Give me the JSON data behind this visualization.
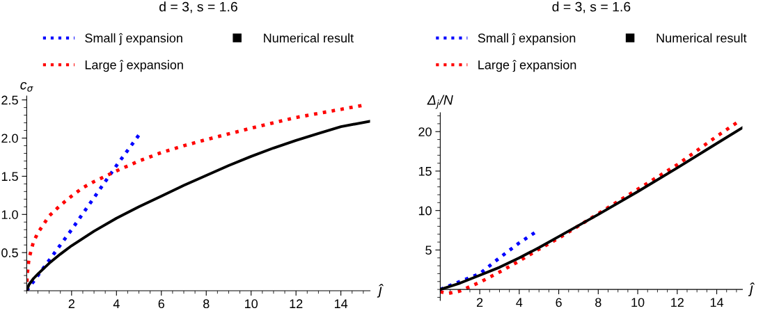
{
  "chart_data": [
    {
      "type": "line",
      "title": "d = 3, s = 1.6",
      "xlabel": "ĵ",
      "ylabel": "c$_{σ}$",
      "legend": "top",
      "xlim": [
        0,
        15.3
      ],
      "ylim": [
        0,
        2.55
      ],
      "xticks": [
        2,
        4,
        6,
        8,
        10,
        12,
        14
      ],
      "yticks": [
        0.5,
        {
          "value": 1,
          "label": "1.0"
        },
        1.5,
        {
          "value": 2,
          "label": "2.0"
        },
        2.5
      ],
      "series": [
        {
          "name": "Small ĵ expansion",
          "color": "#0000ff",
          "line_style": "dotted",
          "x": [
            0,
            1,
            2,
            3,
            4,
            5
          ],
          "values": [
            0,
            0.4,
            0.8,
            1.22,
            1.64,
            2.04
          ]
        },
        {
          "name": "Large ĵ expansion",
          "color": "#ff0000",
          "line_style": "dotted",
          "x": [
            0,
            0.02,
            0.1,
            0.3,
            0.5,
            1,
            1.5,
            2,
            2.5,
            3,
            4,
            5,
            6,
            7,
            8,
            10,
            12,
            15
          ],
          "values": [
            0,
            0.2,
            0.42,
            0.64,
            0.76,
            0.98,
            1.12,
            1.24,
            1.35,
            1.43,
            1.57,
            1.7,
            1.81,
            1.9,
            1.98,
            2.13,
            2.27,
            2.43
          ]
        },
        {
          "name": "Numerical result",
          "color": "#000000",
          "line_style": "solid",
          "x": [
            0,
            0.1,
            0.3,
            0.5,
            1,
            1.5,
            2,
            3,
            4,
            5,
            6,
            7,
            8,
            9,
            10,
            11,
            12,
            13,
            14,
            15.3
          ],
          "values": [
            0,
            0.08,
            0.16,
            0.22,
            0.36,
            0.48,
            0.59,
            0.78,
            0.95,
            1.1,
            1.24,
            1.38,
            1.51,
            1.64,
            1.76,
            1.87,
            1.97,
            2.06,
            2.15,
            2.22
          ]
        }
      ]
    },
    {
      "type": "line",
      "title": "d = 3, s = 1.6",
      "xlabel": "ĵ",
      "ylabel": "Δ$_{j}$/N",
      "legend": "top",
      "xlim": [
        0,
        15.3
      ],
      "ylim": [
        -1.4,
        22.4
      ],
      "xticks": [
        2,
        4,
        6,
        8,
        10,
        12,
        14
      ],
      "yticks": [
        5,
        10,
        15,
        20
      ],
      "series": [
        {
          "name": "Small ĵ expansion",
          "color": "#0000ff",
          "line_style": "dotted",
          "x": [
            0,
            1,
            2,
            3,
            4,
            4.85
          ],
          "values": [
            0,
            1.0,
            2.0,
            4.0,
            5.9,
            7.3
          ]
        },
        {
          "name": "Large ĵ expansion",
          "color": "#ff0000",
          "line_style": "dotted",
          "x": [
            0,
            0.4,
            1,
            2,
            3,
            4,
            5,
            6,
            8,
            10,
            12,
            14,
            15
          ],
          "values": [
            -0.3,
            -0.5,
            -0.2,
            0.9,
            2.2,
            3.6,
            5.1,
            6.5,
            9.6,
            12.7,
            15.8,
            19.4,
            21.1
          ]
        },
        {
          "name": "Numerical result",
          "color": "#000000",
          "line_style": "solid",
          "x": [
            0,
            1,
            2,
            3,
            4,
            5,
            6,
            8,
            10,
            12,
            14,
            15.3
          ],
          "values": [
            0,
            0.8,
            1.8,
            2.8,
            4.0,
            5.3,
            6.7,
            9.5,
            12.4,
            15.4,
            18.5,
            20.5
          ]
        }
      ]
    }
  ]
}
